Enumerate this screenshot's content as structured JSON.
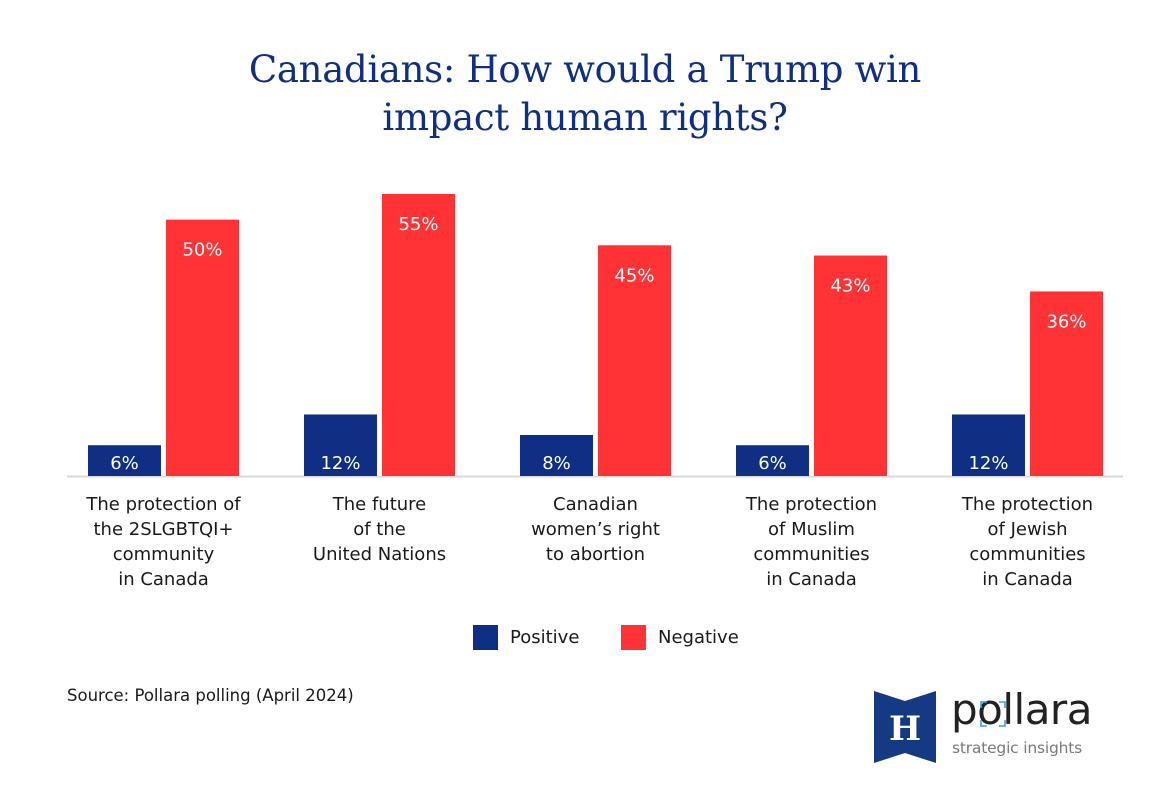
{
  "chart_data": {
    "type": "bar",
    "title": "Canadians: How would a Trump win impact human rights?",
    "title_lines": [
      "Canadians: How would a Trump win",
      "impact human rights?"
    ],
    "categories": [
      "The protection of the 2SLGBTQI+ community in Canada",
      "The future of the United Nations",
      "Canadian women’s right to abortion",
      "The protection of Muslim communities in Canada",
      "The protection of Jewish communities in Canada"
    ],
    "category_label_lines": [
      [
        "The protection of",
        "the 2SLGBTQI+",
        "community",
        "in Canada"
      ],
      [
        "The future",
        "of the",
        "United Nations"
      ],
      [
        "Canadian",
        "women’s right",
        "to abortion"
      ],
      [
        "The protection",
        "of Muslim",
        "communities",
        "in Canada"
      ],
      [
        "The protection",
        "of Jewish",
        "communities",
        "in Canada"
      ]
    ],
    "series": [
      {
        "name": "Positive",
        "color": "#0e2f83",
        "values": [
          6,
          12,
          8,
          6,
          12
        ]
      },
      {
        "name": "Negative",
        "color": "#ff3336",
        "values": [
          50,
          55,
          45,
          43,
          36
        ]
      }
    ],
    "value_suffix": "%",
    "xlabel": "",
    "ylabel": "",
    "ylim": [
      0,
      55
    ],
    "grid": false,
    "legend_position": "bottom-center",
    "data_labels": true
  },
  "source": "Source: Pollara polling (April 2024)",
  "logo": {
    "emblem_letter": "H",
    "wordmark": "pollara",
    "tagline": "strategic insights",
    "emblem_color": "#143a84",
    "accent_color": "#3aa0d8"
  }
}
